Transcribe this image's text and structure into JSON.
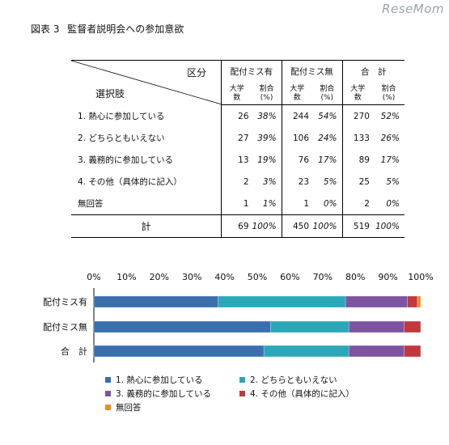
{
  "logo": "ReseMom",
  "figure": {
    "label": "図表 3",
    "title": "監督者説明会への参加意欲"
  },
  "table": {
    "corner_top": "区分",
    "corner_bottom": "選択肢",
    "groups": [
      "配付ミス有",
      "配付ミス無",
      "合　計"
    ],
    "sub_count": [
      "大学",
      "数"
    ],
    "sub_pct": [
      "割合",
      "(%)"
    ],
    "rows": [
      {
        "label": "1. 熱心に参加している",
        "values": [
          "26",
          "38%",
          "244",
          "54%",
          "270",
          "52%"
        ]
      },
      {
        "label": "2. どちらともいえない",
        "values": [
          "27",
          "39%",
          "106",
          "24%",
          "133",
          "26%"
        ]
      },
      {
        "label": "3. 義務的に参加している",
        "values": [
          "13",
          "19%",
          "76",
          "17%",
          "89",
          "17%"
        ]
      },
      {
        "label": "4. その他（具体的に記入）",
        "values": [
          "2",
          "3%",
          "23",
          "5%",
          "25",
          "5%"
        ]
      },
      {
        "label": "無回答",
        "values": [
          "1",
          "1%",
          "1",
          "0%",
          "2",
          "0%"
        ]
      }
    ],
    "total": {
      "label": "計",
      "values": [
        "69",
        "100%",
        "450",
        "100%",
        "519",
        "100%"
      ]
    }
  },
  "chart_data": {
    "type": "bar",
    "stacked": true,
    "orientation": "horizontal",
    "categories": [
      "配付ミス有",
      "配付ミス無",
      "合　計"
    ],
    "x_ticks": [
      "0%",
      "10%",
      "20%",
      "30%",
      "40%",
      "50%",
      "60%",
      "70%",
      "80%",
      "90%",
      "100%"
    ],
    "xlim": [
      0,
      100
    ],
    "grid": false,
    "legend_position": "bottom",
    "series": [
      {
        "name": "1.  熱心に参加している",
        "color": "#3a6fae",
        "values": [
          38,
          54,
          52
        ]
      },
      {
        "name": "2.  どちらともいえない",
        "color": "#2aa7b8",
        "values": [
          39,
          24,
          26
        ]
      },
      {
        "name": "3.  義務的に参加している",
        "color": "#7e53a1",
        "values": [
          19,
          17,
          17
        ]
      },
      {
        "name": "4.  その他（具体的に記入）",
        "color": "#c0393b",
        "values": [
          3,
          5,
          5
        ]
      },
      {
        "name": "無回答",
        "color": "#ee8a24",
        "values": [
          1,
          0,
          0
        ]
      }
    ]
  }
}
